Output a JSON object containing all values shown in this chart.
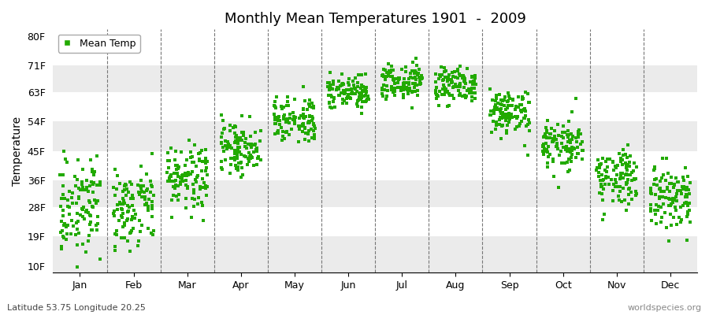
{
  "title": "Monthly Mean Temperatures 1901  -  2009",
  "ylabel": "Temperature",
  "lat_lon_label": "Latitude 53.75 Longitude 20.25",
  "watermark": "worldspecies.org",
  "legend_label": "Mean Temp",
  "dot_color": "#22aa00",
  "dot_size": 5,
  "background_color": "#ffffff",
  "band_color_odd": "#ebebeb",
  "band_color_even": "#ffffff",
  "months": [
    "Jan",
    "Feb",
    "Mar",
    "Apr",
    "May",
    "Jun",
    "Jul",
    "Aug",
    "Sep",
    "Oct",
    "Nov",
    "Dec"
  ],
  "yticks": [
    10,
    19,
    28,
    36,
    45,
    54,
    63,
    71,
    80
  ],
  "ylim": [
    8,
    82
  ],
  "mean_temps_F": [
    28,
    29,
    37,
    46,
    55,
    63,
    66,
    65,
    57,
    47,
    37,
    31
  ],
  "std_temps_F": [
    6.5,
    6.5,
    5.0,
    4.0,
    3.5,
    3.0,
    2.8,
    3.0,
    3.5,
    4.0,
    4.5,
    5.5
  ],
  "n_years": 109
}
